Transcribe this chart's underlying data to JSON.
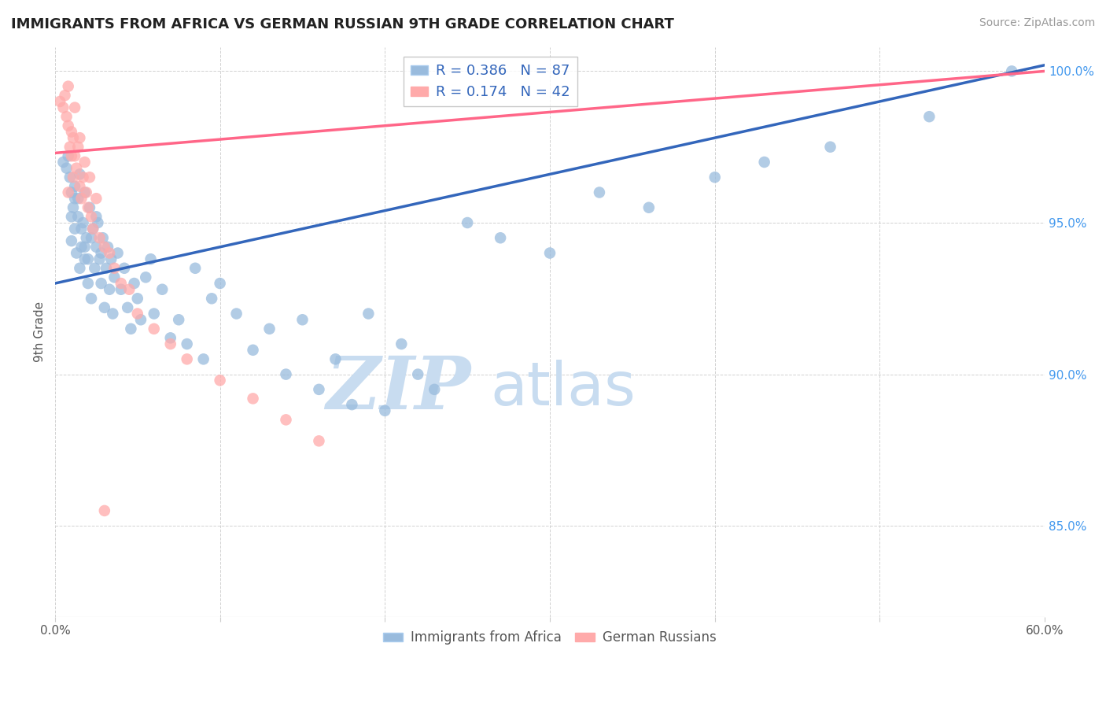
{
  "title": "IMMIGRANTS FROM AFRICA VS GERMAN RUSSIAN 9TH GRADE CORRELATION CHART",
  "source": "Source: ZipAtlas.com",
  "ylabel_label": "9th Grade",
  "x_min": 0.0,
  "x_max": 0.6,
  "y_min": 0.82,
  "y_max": 1.008,
  "x_ticks": [
    0.0,
    0.1,
    0.2,
    0.3,
    0.4,
    0.5,
    0.6
  ],
  "x_tick_labels": [
    "0.0%",
    "",
    "",
    "",
    "",
    "",
    "60.0%"
  ],
  "y_ticks": [
    0.85,
    0.9,
    0.95,
    1.0
  ],
  "y_tick_labels": [
    "85.0%",
    "90.0%",
    "95.0%",
    "100.0%"
  ],
  "blue_R": 0.386,
  "blue_N": 87,
  "pink_R": 0.174,
  "pink_N": 42,
  "blue_color": "#99BBDD",
  "pink_color": "#FFAAAA",
  "blue_line_color": "#3366BB",
  "pink_line_color": "#FF6688",
  "watermark_zip": "ZIP",
  "watermark_atlas": "atlas",
  "blue_line_x0": 0.0,
  "blue_line_y0": 0.93,
  "blue_line_x1": 0.6,
  "blue_line_y1": 1.002,
  "pink_line_x0": 0.0,
  "pink_line_y0": 0.973,
  "pink_line_x1": 0.6,
  "pink_line_y1": 1.0,
  "blue_scatter_x": [
    0.005,
    0.007,
    0.008,
    0.009,
    0.01,
    0.01,
    0.01,
    0.011,
    0.012,
    0.012,
    0.013,
    0.014,
    0.015,
    0.015,
    0.016,
    0.017,
    0.018,
    0.018,
    0.019,
    0.02,
    0.021,
    0.022,
    0.023,
    0.024,
    0.025,
    0.026,
    0.027,
    0.028,
    0.029,
    0.03,
    0.031,
    0.032,
    0.033,
    0.034,
    0.035,
    0.036,
    0.038,
    0.04,
    0.042,
    0.044,
    0.046,
    0.048,
    0.05,
    0.052,
    0.055,
    0.058,
    0.06,
    0.065,
    0.07,
    0.075,
    0.08,
    0.085,
    0.09,
    0.095,
    0.1,
    0.11,
    0.12,
    0.13,
    0.14,
    0.15,
    0.16,
    0.17,
    0.18,
    0.19,
    0.2,
    0.21,
    0.22,
    0.23,
    0.25,
    0.27,
    0.3,
    0.33,
    0.36,
    0.4,
    0.43,
    0.47,
    0.53,
    0.58,
    0.012,
    0.014,
    0.016,
    0.018,
    0.02,
    0.022,
    0.025,
    0.028
  ],
  "blue_scatter_y": [
    0.97,
    0.968,
    0.972,
    0.965,
    0.96,
    0.952,
    0.944,
    0.955,
    0.948,
    0.962,
    0.94,
    0.958,
    0.935,
    0.966,
    0.942,
    0.95,
    0.938,
    0.96,
    0.945,
    0.93,
    0.955,
    0.925,
    0.948,
    0.935,
    0.942,
    0.95,
    0.938,
    0.93,
    0.945,
    0.922,
    0.935,
    0.942,
    0.928,
    0.938,
    0.92,
    0.932,
    0.94,
    0.928,
    0.935,
    0.922,
    0.915,
    0.93,
    0.925,
    0.918,
    0.932,
    0.938,
    0.92,
    0.928,
    0.912,
    0.918,
    0.91,
    0.935,
    0.905,
    0.925,
    0.93,
    0.92,
    0.908,
    0.915,
    0.9,
    0.918,
    0.895,
    0.905,
    0.89,
    0.92,
    0.888,
    0.91,
    0.9,
    0.895,
    0.95,
    0.945,
    0.94,
    0.96,
    0.955,
    0.965,
    0.97,
    0.975,
    0.985,
    1.0,
    0.958,
    0.952,
    0.948,
    0.942,
    0.938,
    0.945,
    0.952,
    0.94
  ],
  "pink_scatter_x": [
    0.003,
    0.005,
    0.006,
    0.007,
    0.008,
    0.008,
    0.009,
    0.01,
    0.01,
    0.011,
    0.011,
    0.012,
    0.012,
    0.013,
    0.014,
    0.015,
    0.015,
    0.016,
    0.017,
    0.018,
    0.019,
    0.02,
    0.021,
    0.022,
    0.023,
    0.025,
    0.027,
    0.03,
    0.033,
    0.036,
    0.04,
    0.045,
    0.05,
    0.06,
    0.07,
    0.08,
    0.1,
    0.12,
    0.14,
    0.16,
    0.03,
    0.008
  ],
  "pink_scatter_y": [
    0.99,
    0.988,
    0.992,
    0.985,
    0.982,
    0.995,
    0.975,
    0.98,
    0.972,
    0.978,
    0.965,
    0.988,
    0.972,
    0.968,
    0.975,
    0.962,
    0.978,
    0.958,
    0.965,
    0.97,
    0.96,
    0.955,
    0.965,
    0.952,
    0.948,
    0.958,
    0.945,
    0.942,
    0.94,
    0.935,
    0.93,
    0.928,
    0.92,
    0.915,
    0.91,
    0.905,
    0.898,
    0.892,
    0.885,
    0.878,
    0.855,
    0.96
  ]
}
